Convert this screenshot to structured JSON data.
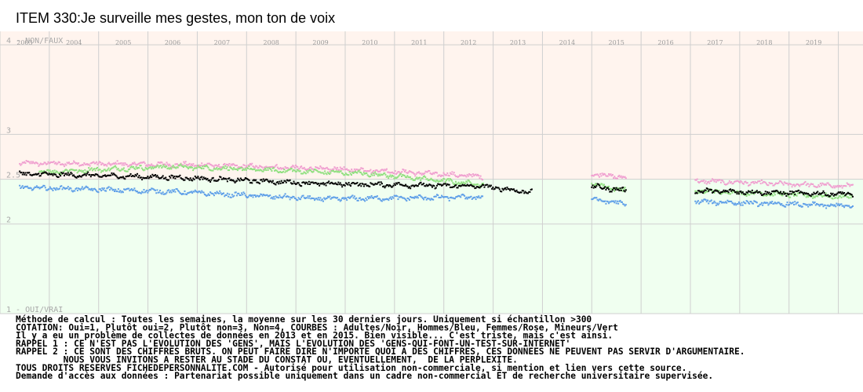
{
  "chart_data": {
    "type": "scatter",
    "title": "ITEM 330:Je surveille mes gestes, mon ton de voix",
    "x_ticks": [
      "2003",
      "2004",
      "2005",
      "2006",
      "2007",
      "2008",
      "2009",
      "2010",
      "2011",
      "2012",
      "2013",
      "2014",
      "2015",
      "2016",
      "2017",
      "2018",
      "2019"
    ],
    "x_range": [
      2002.5,
      2020.0
    ],
    "y_range": [
      1,
      4.15
    ],
    "y_ticks": [
      {
        "value": 4,
        "label": "4 - NON/FAUX"
      },
      {
        "value": 3,
        "label": "3"
      },
      {
        "value": 2.5,
        "label": "2.5"
      },
      {
        "value": 2,
        "label": "2"
      },
      {
        "value": 1,
        "label": "1 - OUI/VRAI"
      }
    ],
    "background_split_value": 2.5,
    "background_colors": {
      "upper": "#fff4ee",
      "lower": "#f0fff0"
    },
    "gaps": [
      [
        2013.6,
        2014.5
      ],
      [
        2015.2,
        2016.6
      ]
    ],
    "series": [
      {
        "color": "#f0a0d0",
        "segments": [
          {
            "x": [
              2002.9,
              2006.5,
              2010.0,
              2012.3
            ],
            "y": [
              2.68,
              2.66,
              2.6,
              2.53
            ]
          },
          {
            "x": [
              2014.5,
              2015.2
            ],
            "y": [
              2.56,
              2.52
            ]
          },
          {
            "x": [
              2016.6,
              2019.8
            ],
            "y": [
              2.48,
              2.42
            ]
          }
        ]
      },
      {
        "color": "#90e080",
        "segments": [
          {
            "x": [
              2003.3,
              2006.0,
              2010.0,
              2012.3
            ],
            "y": [
              2.58,
              2.64,
              2.56,
              2.44
            ]
          },
          {
            "x": [
              2014.5,
              2015.2
            ],
            "y": [
              2.45,
              2.37
            ]
          },
          {
            "x": [
              2016.6,
              2019.8
            ],
            "y": [
              2.37,
              2.3
            ]
          }
        ]
      },
      {
        "color": "#000000",
        "segments": [
          {
            "x": [
              2002.9,
              2006.0,
              2009.0,
              2012.3,
              2013.3
            ],
            "y": [
              2.56,
              2.52,
              2.45,
              2.42,
              2.35
            ]
          },
          {
            "x": [
              2014.5,
              2015.2
            ],
            "y": [
              2.42,
              2.37
            ]
          },
          {
            "x": [
              2016.6,
              2019.8
            ],
            "y": [
              2.37,
              2.33
            ]
          }
        ]
      },
      {
        "color": "#5f9fe8",
        "segments": [
          {
            "x": [
              2002.9,
              2006.0,
              2009.0,
              2012.3
            ],
            "y": [
              2.41,
              2.36,
              2.28,
              2.3
            ]
          },
          {
            "x": [
              2014.5,
              2015.2
            ],
            "y": [
              2.28,
              2.22
            ]
          },
          {
            "x": [
              2016.6,
              2019.8
            ],
            "y": [
              2.25,
              2.2
            ]
          }
        ]
      }
    ]
  },
  "notes": [
    "Méthode de calcul : Toutes les semaines, la moyenne sur les 30 derniers jours. Uniquement si échantillon >300",
    "COTATION: Oui=1, Plutôt oui=2, Plutôt non=3, Non=4, COURBES : Adultes/Noir, Hommes/Bleu, Femmes/Rose, Mineurs/Vert",
    "Il y a eu un problème de collectes de données en 2013 et en 2015. Bien visible... C'est triste, mais c'est ainsi.",
    "RAPPEL 1 : CE N'EST PAS L'EVOLUTION DES 'GENS', MAIS L'EVOLUTION DES 'GENS-QUI-FONT-UN-TEST-SUR-INTERNET'",
    "RAPPEL 2 : CE SONT DES CHIFFRES BRUTS. ON PEUT FAIRE DIRE N'IMPORTE QUOI A DES CHIFFRES, CES DONNEES NE PEUVENT PAS SERVIR D'ARGUMENTAIRE.",
    "         NOUS VOUS INVITONS A RESTER AU STADE DU CONSTAT OU, EVENTUELLEMENT,  DE LA PERPLEXITE.",
    "TOUS DROITS RESERVES FICHEDEPERSONNALITE.COM - Autorisé pour utilisation non-commerciale, si mention et lien vers cette source.",
    "Demande d'accès aux données : Partenariat possible uniquement dans un cadre non-commercial ET de recherche universitaire supervisée."
  ]
}
